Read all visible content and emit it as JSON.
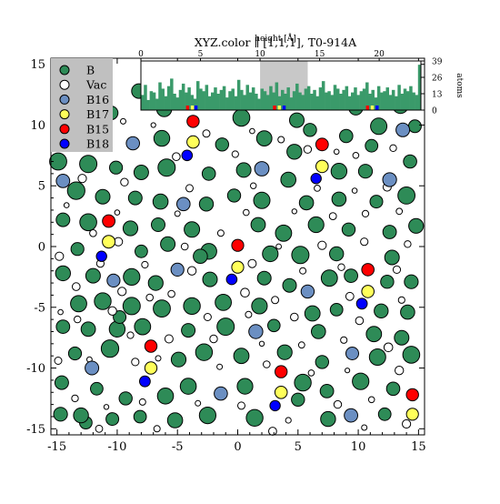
{
  "chart_data": {
    "type": "scatter",
    "title": "XYZ.color ∥ [1,1,1], T0-914A",
    "xlim": [
      -15.5,
      15.5
    ],
    "ylim": [
      -15.5,
      15.5
    ],
    "xticks": [
      -15,
      -10,
      -5,
      0,
      5,
      10,
      15
    ],
    "yticks": [
      -15,
      -10,
      -5,
      0,
      5,
      10,
      15
    ],
    "legend": {
      "placement": "top-left",
      "entries": [
        {
          "name": "B",
          "color": "#2e8b57"
        },
        {
          "name": "Vac",
          "color": "#ffffff"
        },
        {
          "name": "B16",
          "color": "#6b8fc2"
        },
        {
          "name": "B17",
          "color": "#ffff5a"
        },
        {
          "name": "B15",
          "color": "#ff0000"
        },
        {
          "name": "B18",
          "color": "#0000ff"
        }
      ]
    },
    "series": [
      {
        "name": "B15",
        "color": "#ff0000",
        "points": [
          [
            -3.7,
            10.3
          ],
          [
            7.0,
            8.4
          ],
          [
            -10.7,
            2.1
          ],
          [
            0.0,
            0.1
          ],
          [
            10.8,
            -1.9
          ],
          [
            -7.2,
            -8.2
          ],
          [
            3.6,
            -10.3
          ],
          [
            14.5,
            -12.2
          ]
        ]
      },
      {
        "name": "B17",
        "color": "#ffff5a",
        "points": [
          [
            -3.7,
            8.6
          ],
          [
            7.0,
            6.6
          ],
          [
            -10.7,
            0.4
          ],
          [
            0.0,
            -1.7
          ],
          [
            10.8,
            -3.7
          ],
          [
            -7.2,
            -10.0
          ],
          [
            3.6,
            -12.0
          ],
          [
            14.5,
            -13.8
          ]
        ]
      },
      {
        "name": "B18",
        "color": "#0000ff",
        "points": [
          [
            -4.2,
            7.5
          ],
          [
            6.5,
            5.6
          ],
          [
            -11.3,
            -0.8
          ],
          [
            -0.5,
            -2.7
          ],
          [
            10.3,
            -4.7
          ],
          [
            -7.7,
            -11.1
          ],
          [
            3.1,
            -13.1
          ]
        ]
      },
      {
        "name": "B16",
        "color": "#6b8fc2",
        "points": [
          [
            -8.7,
            8.5
          ],
          [
            -14.5,
            5.4
          ],
          [
            2.0,
            6.4
          ],
          [
            12.6,
            5.5
          ],
          [
            -5.0,
            -1.9
          ],
          [
            5.8,
            -3.7
          ],
          [
            -12.1,
            -10.0
          ],
          [
            -1.4,
            -12.1
          ],
          [
            9.4,
            -13.9
          ],
          [
            13.7,
            9.6
          ],
          [
            -4.5,
            3.5
          ],
          [
            9.5,
            -8.8
          ],
          [
            -10.3,
            -2.8
          ],
          [
            1.5,
            -7.0
          ]
        ]
      },
      {
        "name": "B",
        "color": "#2e8b57",
        "points": [
          [
            -14.8,
            13.8
          ],
          [
            -13.5,
            11.6
          ],
          [
            -12.0,
            13.5
          ],
          [
            -10.5,
            11.0
          ],
          [
            -8.2,
            12.8
          ],
          [
            -6.1,
            11.3
          ],
          [
            -1.7,
            11.8
          ],
          [
            0.3,
            10.6
          ],
          [
            2.7,
            12.1
          ],
          [
            4.9,
            10.4
          ],
          [
            9.8,
            11.4
          ],
          [
            11.7,
            9.9
          ],
          [
            13.5,
            11.6
          ],
          [
            14.7,
            9.9
          ],
          [
            -13.6,
            8.8
          ],
          [
            -11.6,
            9.4
          ],
          [
            -6.3,
            8.9
          ],
          [
            -1.3,
            8.4
          ],
          [
            2.2,
            8.9
          ],
          [
            4.7,
            7.8
          ],
          [
            9.0,
            9.1
          ],
          [
            11.1,
            8.3
          ],
          [
            -14.9,
            7.0
          ],
          [
            -12.4,
            6.8
          ],
          [
            -10.1,
            6.5
          ],
          [
            -8.0,
            6.1
          ],
          [
            -5.9,
            6.5
          ],
          [
            -2.4,
            6.0
          ],
          [
            0.5,
            6.3
          ],
          [
            4.2,
            5.5
          ],
          [
            8.4,
            6.2
          ],
          [
            10.6,
            6.2
          ],
          [
            14.3,
            7.0
          ],
          [
            -13.4,
            4.6
          ],
          [
            -11.2,
            4.1
          ],
          [
            -8.5,
            4.0
          ],
          [
            -6.4,
            3.7
          ],
          [
            -2.6,
            3.5
          ],
          [
            -0.3,
            4.2
          ],
          [
            2.0,
            3.8
          ],
          [
            5.7,
            3.6
          ],
          [
            8.4,
            3.9
          ],
          [
            11.5,
            3.7
          ],
          [
            14.0,
            4.2
          ],
          [
            -14.5,
            2.2
          ],
          [
            -12.4,
            2.0
          ],
          [
            -8.9,
            1.5
          ],
          [
            -6.6,
            1.8
          ],
          [
            -3.8,
            1.4
          ],
          [
            1.7,
            1.8
          ],
          [
            3.8,
            1.1
          ],
          [
            6.5,
            1.8
          ],
          [
            9.2,
            1.4
          ],
          [
            12.6,
            1.2
          ],
          [
            14.8,
            1.7
          ],
          [
            -13.3,
            -0.2
          ],
          [
            -8.0,
            -0.4
          ],
          [
            -5.8,
            0.2
          ],
          [
            -2.4,
            -0.4
          ],
          [
            2.7,
            -0.6
          ],
          [
            5.2,
            -0.7
          ],
          [
            8.2,
            -0.6
          ],
          [
            12.8,
            -0.9
          ],
          [
            -14.5,
            -2.2
          ],
          [
            -12.0,
            -2.4
          ],
          [
            -8.8,
            -2.5
          ],
          [
            -6.8,
            -3.0
          ],
          [
            -2.3,
            -2.7
          ],
          [
            2.2,
            -2.6
          ],
          [
            4.3,
            -3.2
          ],
          [
            7.6,
            -2.6
          ],
          [
            12.4,
            -2.9
          ],
          [
            14.4,
            -2.9
          ],
          [
            -13.2,
            -4.7
          ],
          [
            -11.2,
            -4.5
          ],
          [
            -8.8,
            -4.9
          ],
          [
            -6.3,
            -5.1
          ],
          [
            -3.8,
            -4.9
          ],
          [
            -1.2,
            -4.6
          ],
          [
            1.8,
            -4.9
          ],
          [
            6.2,
            -5.5
          ],
          [
            8.2,
            -5.2
          ],
          [
            11.9,
            -5.3
          ],
          [
            14.1,
            -5.4
          ],
          [
            -14.5,
            -6.6
          ],
          [
            -12.4,
            -6.8
          ],
          [
            -10.0,
            -6.8
          ],
          [
            -7.9,
            -6.6
          ],
          [
            -4.1,
            -6.9
          ],
          [
            -1.0,
            -6.6
          ],
          [
            3.0,
            -6.5
          ],
          [
            6.7,
            -7.0
          ],
          [
            11.3,
            -7.2
          ],
          [
            13.6,
            -7.5
          ],
          [
            -13.5,
            -8.8
          ],
          [
            -10.6,
            -8.4
          ],
          [
            -4.9,
            -9.3
          ],
          [
            -2.8,
            -8.7
          ],
          [
            0.3,
            -9.0
          ],
          [
            3.9,
            -8.7
          ],
          [
            7.0,
            -9.5
          ],
          [
            11.6,
            -9.1
          ],
          [
            14.4,
            -8.9
          ],
          [
            -14.6,
            -11.2
          ],
          [
            -11.7,
            -11.7
          ],
          [
            -9.3,
            -12.5
          ],
          [
            -6.0,
            -12.3
          ],
          [
            -4.1,
            -11.5
          ],
          [
            0.6,
            -11.5
          ],
          [
            5.4,
            -11.2
          ],
          [
            7.4,
            -11.9
          ],
          [
            10.2,
            -11.1
          ],
          [
            12.9,
            -11.7
          ],
          [
            -12.6,
            -14.5
          ],
          [
            -10.4,
            -14.2
          ],
          [
            -8.1,
            -14.0
          ],
          [
            -5.2,
            -14.3
          ],
          [
            -2.5,
            -13.9
          ],
          [
            1.4,
            -14.1
          ],
          [
            5.0,
            -12.6
          ],
          [
            7.5,
            -14.2
          ],
          [
            12.2,
            -13.8
          ],
          [
            -14.7,
            -13.8
          ],
          [
            -13.0,
            -13.9
          ],
          [
            -9.8,
            -5.8
          ],
          [
            -3.1,
            -0.8
          ],
          [
            9.4,
            -2.4
          ],
          [
            -11.7,
            11.9
          ],
          [
            -5.2,
            12.7
          ],
          [
            6.0,
            9.6
          ]
        ]
      },
      {
        "name": "Vac",
        "color": "#ffffff",
        "points": [
          [
            -9.5,
            10.3
          ],
          [
            -7.0,
            10.0
          ],
          [
            -2.6,
            9.3
          ],
          [
            1.2,
            9.5
          ],
          [
            3.6,
            8.8
          ],
          [
            8.2,
            7.8
          ],
          [
            12.9,
            8.1
          ],
          [
            -14.0,
            9.9
          ],
          [
            -10.6,
            8.1
          ],
          [
            -5.1,
            7.4
          ],
          [
            -0.2,
            7.6
          ],
          [
            5.8,
            8.0
          ],
          [
            9.8,
            7.5
          ],
          [
            -12.9,
            5.6
          ],
          [
            -9.4,
            5.3
          ],
          [
            -4.0,
            4.8
          ],
          [
            1.3,
            5.0
          ],
          [
            6.6,
            4.8
          ],
          [
            9.7,
            4.6
          ],
          [
            12.4,
            4.9
          ],
          [
            -14.2,
            3.4
          ],
          [
            -10.0,
            2.8
          ],
          [
            -5.0,
            2.7
          ],
          [
            0.7,
            2.8
          ],
          [
            4.7,
            2.9
          ],
          [
            7.9,
            2.5
          ],
          [
            10.6,
            2.7
          ],
          [
            13.4,
            2.9
          ],
          [
            -12.0,
            1.1
          ],
          [
            -9.9,
            0.4
          ],
          [
            -4.4,
            0.0
          ],
          [
            -1.4,
            1.1
          ],
          [
            3.4,
            0.0
          ],
          [
            7.0,
            0.1
          ],
          [
            10.5,
            0.4
          ],
          [
            14.1,
            0.2
          ],
          [
            -14.8,
            -0.8
          ],
          [
            -11.4,
            -1.4
          ],
          [
            -7.7,
            -1.5
          ],
          [
            -3.8,
            -2.0
          ],
          [
            1.2,
            -1.4
          ],
          [
            5.4,
            -2.0
          ],
          [
            8.6,
            -1.7
          ],
          [
            13.2,
            -1.9
          ],
          [
            -13.4,
            -3.3
          ],
          [
            -9.6,
            -3.7
          ],
          [
            -5.5,
            -3.9
          ],
          [
            0.6,
            -3.8
          ],
          [
            3.1,
            -4.4
          ],
          [
            9.3,
            -4.1
          ],
          [
            13.6,
            -4.4
          ],
          [
            -14.7,
            -5.4
          ],
          [
            -10.4,
            -5.3
          ],
          [
            -7.3,
            -4.2
          ],
          [
            -2.5,
            -5.8
          ],
          [
            0.9,
            -5.6
          ],
          [
            4.7,
            -5.8
          ],
          [
            10.1,
            -6.1
          ],
          [
            -13.3,
            -6.0
          ],
          [
            -8.9,
            -7.3
          ],
          [
            -5.7,
            -7.6
          ],
          [
            -2.0,
            -7.6
          ],
          [
            2.0,
            -8.0
          ],
          [
            5.3,
            -8.1
          ],
          [
            8.8,
            -7.7
          ],
          [
            12.5,
            -8.3
          ],
          [
            -14.9,
            -9.4
          ],
          [
            -12.3,
            -9.3
          ],
          [
            -8.5,
            -9.5
          ],
          [
            -6.6,
            -9.2
          ],
          [
            -1.5,
            -9.9
          ],
          [
            2.4,
            -9.7
          ],
          [
            6.1,
            -10.4
          ],
          [
            9.1,
            -10.2
          ],
          [
            13.4,
            -10.2
          ],
          [
            -13.5,
            -12.5
          ],
          [
            -10.9,
            -13.2
          ],
          [
            -7.9,
            -12.8
          ],
          [
            -3.3,
            -12.9
          ],
          [
            0.3,
            -13.1
          ],
          [
            4.2,
            -14.3
          ],
          [
            8.3,
            -13.0
          ],
          [
            11.1,
            -12.6
          ],
          [
            14.0,
            -14.6
          ],
          [
            -11.5,
            -15.0
          ],
          [
            -6.7,
            -15.0
          ],
          [
            2.9,
            -15.2
          ],
          [
            10.5,
            -14.9
          ]
        ]
      }
    ],
    "inset": {
      "title": "height [Å]",
      "ylabel": "atoms",
      "type": "bar",
      "ylim": [
        0,
        39
      ],
      "yticks": [
        0,
        13,
        26,
        39
      ],
      "xticks": [
        0,
        5,
        10,
        15,
        20
      ],
      "xlim": [
        0,
        23.5
      ],
      "highlight_ranges": [
        [
          10,
          14
        ]
      ],
      "bins_per_unit": 4,
      "counts": [
        12,
        20,
        8,
        15,
        14,
        9,
        22,
        17,
        11,
        19,
        25,
        13,
        10,
        16,
        21,
        14,
        18,
        12,
        9,
        23,
        17,
        15,
        20,
        11,
        14,
        18,
        13,
        16,
        19,
        10,
        15,
        17,
        11,
        24,
        16,
        12,
        20,
        14,
        18,
        13,
        9,
        17,
        15,
        12,
        19,
        14,
        22,
        11,
        16,
        13,
        18,
        10,
        15,
        21,
        14,
        12,
        17,
        19,
        13,
        16,
        11,
        18,
        23,
        14,
        15,
        12,
        20,
        17,
        13,
        16,
        19,
        11,
        14,
        18,
        12,
        15,
        17,
        22,
        13,
        16,
        10,
        19,
        14,
        15,
        18,
        12,
        16,
        11,
        20,
        13,
        17,
        15,
        19,
        14,
        12,
        36
      ],
      "markers": [
        {
          "x": 3.9,
          "color": "#ff0000"
        },
        {
          "x": 4.3,
          "color": "#ffff5a"
        },
        {
          "x": 4.6,
          "color": "#0000ff"
        },
        {
          "x": 11.2,
          "color": "#ff0000"
        },
        {
          "x": 11.6,
          "color": "#ffff5a"
        },
        {
          "x": 12.0,
          "color": "#0000ff"
        },
        {
          "x": 19.0,
          "color": "#ff0000"
        },
        {
          "x": 19.4,
          "color": "#ffff5a"
        },
        {
          "x": 19.8,
          "color": "#0000ff"
        }
      ]
    }
  }
}
